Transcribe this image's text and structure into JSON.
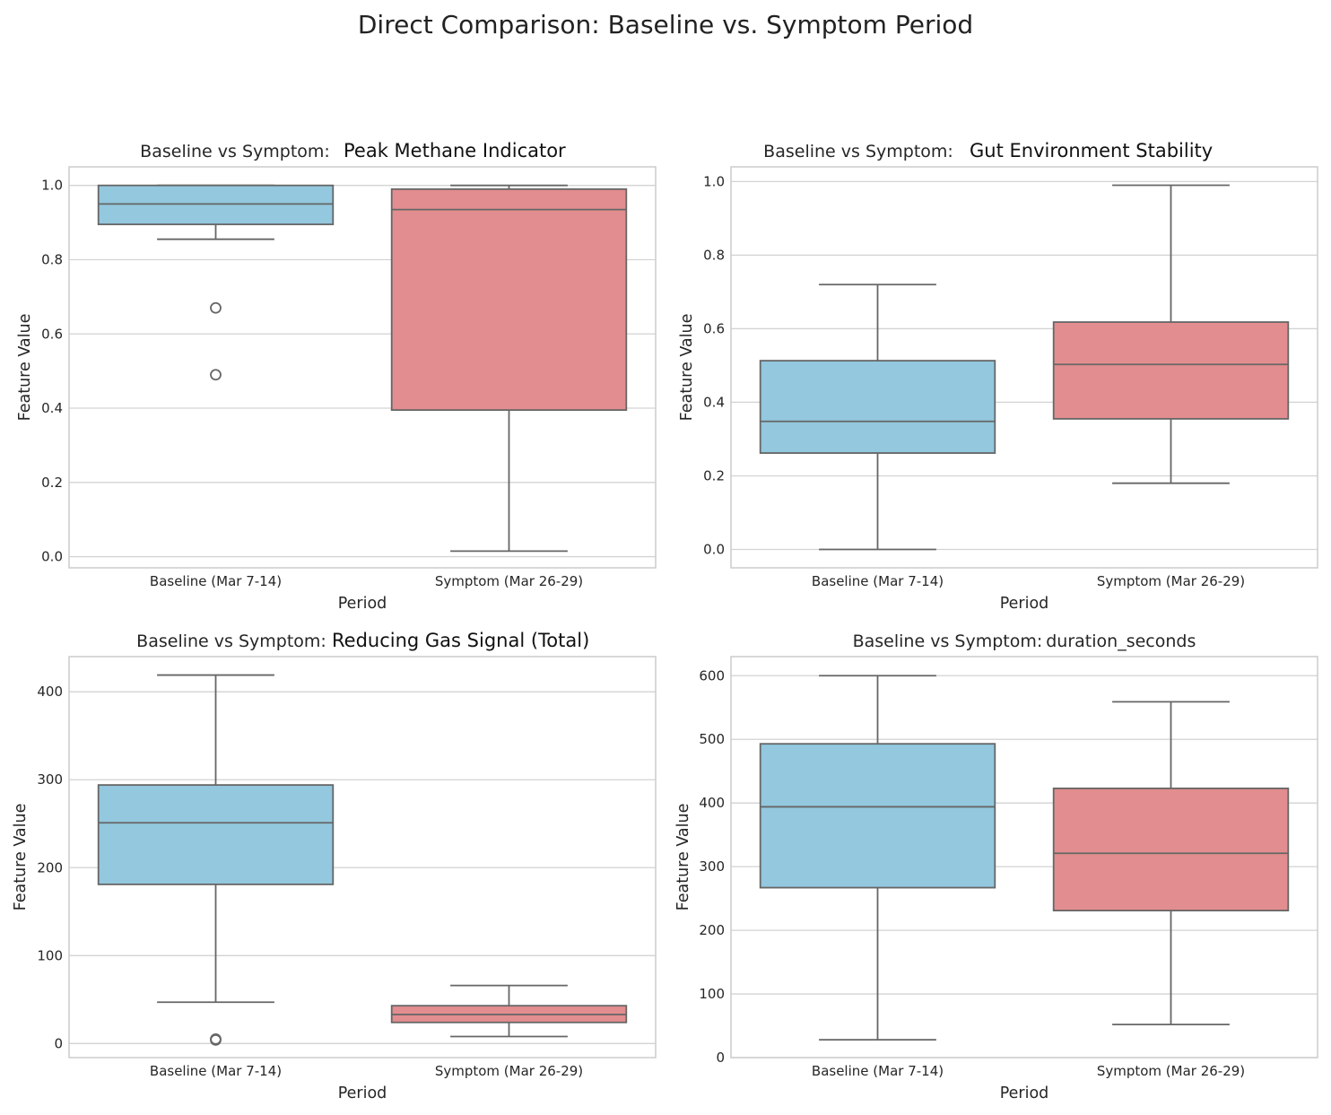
{
  "figure_title": "Direct Comparison: Baseline vs. Symptom Period",
  "colors": {
    "baseline": "#93c8de",
    "symptom": "#e28d8f",
    "line": "#666666",
    "grid": "#d3d3d3",
    "spine": "#cccccc"
  },
  "chart_data": [
    {
      "type": "box",
      "title_prefix": "Baseline vs Symptom:",
      "title_feature": "Peak Methane Indicator",
      "xlabel": "Period",
      "ylabel": "Feature Value",
      "ylim": [
        -0.03,
        1.05
      ],
      "yticks": [
        0.0,
        0.2,
        0.4,
        0.6,
        0.8,
        1.0
      ],
      "ytick_labels": [
        "0.0",
        "0.2",
        "0.4",
        "0.6",
        "0.8",
        "1.0"
      ],
      "categories": [
        "Baseline (Mar 7-14)",
        "Symptom (Mar 26-29)"
      ],
      "boxes": [
        {
          "name": "Baseline (Mar 7-14)",
          "whislo": 0.855,
          "q1": 0.895,
          "median": 0.95,
          "q3": 1.0,
          "whishi": 1.0,
          "fliers": [
            0.67,
            0.49
          ]
        },
        {
          "name": "Symptom (Mar 26-29)",
          "whislo": 0.015,
          "q1": 0.395,
          "median": 0.935,
          "q3": 0.99,
          "whishi": 1.0,
          "fliers": []
        }
      ]
    },
    {
      "type": "box",
      "title_prefix": "Baseline vs Symptom:",
      "title_feature": "Gut Environment Stability",
      "xlabel": "Period",
      "ylabel": "Feature Value",
      "ylim": [
        -0.05,
        1.04
      ],
      "yticks": [
        0.0,
        0.2,
        0.4,
        0.6,
        0.8,
        1.0
      ],
      "ytick_labels": [
        "0.0",
        "0.2",
        "0.4",
        "0.6",
        "0.8",
        "1.0"
      ],
      "categories": [
        "Baseline (Mar 7-14)",
        "Symptom (Mar 26-29)"
      ],
      "boxes": [
        {
          "name": "Baseline (Mar 7-14)",
          "whislo": 0.0,
          "q1": 0.262,
          "median": 0.348,
          "q3": 0.513,
          "whishi": 0.72,
          "fliers": []
        },
        {
          "name": "Symptom (Mar 26-29)",
          "whislo": 0.18,
          "q1": 0.355,
          "median": 0.503,
          "q3": 0.618,
          "whishi": 0.99,
          "fliers": []
        }
      ]
    },
    {
      "type": "box",
      "title_prefix": "Baseline vs Symptom:",
      "title_feature": "Reducing Gas Signal (Total)",
      "xlabel": "Period",
      "ylabel": "Feature Value",
      "ylim": [
        -16,
        440
      ],
      "yticks": [
        0,
        100,
        200,
        300,
        400
      ],
      "ytick_labels": [
        "0",
        "100",
        "200",
        "300",
        "400"
      ],
      "categories": [
        "Baseline (Mar 7-14)",
        "Symptom (Mar 26-29)"
      ],
      "boxes": [
        {
          "name": "Baseline (Mar 7-14)",
          "whislo": 47,
          "q1": 181,
          "median": 251,
          "q3": 294,
          "whishi": 419,
          "fliers": [
            5,
            4
          ]
        },
        {
          "name": "Symptom (Mar 26-29)",
          "whislo": 8,
          "q1": 24,
          "median": 33,
          "q3": 43,
          "whishi": 66,
          "fliers": []
        }
      ]
    },
    {
      "type": "box",
      "title_prefix": "Baseline vs Symptom:",
      "title_feature": "duration_seconds",
      "xlabel": "Period",
      "ylabel": "Feature Value",
      "ylim": [
        0,
        630
      ],
      "yticks": [
        0,
        100,
        200,
        300,
        400,
        500,
        600
      ],
      "ytick_labels": [
        "0",
        "100",
        "200",
        "300",
        "400",
        "500",
        "600"
      ],
      "categories": [
        "Baseline (Mar 7-14)",
        "Symptom (Mar 26-29)"
      ],
      "boxes": [
        {
          "name": "Baseline (Mar 7-14)",
          "whislo": 28,
          "q1": 267,
          "median": 394,
          "q3": 493,
          "whishi": 600,
          "fliers": []
        },
        {
          "name": "Symptom (Mar 26-29)",
          "whislo": 52,
          "q1": 231,
          "median": 321,
          "q3": 423,
          "whishi": 559,
          "fliers": []
        }
      ]
    }
  ]
}
